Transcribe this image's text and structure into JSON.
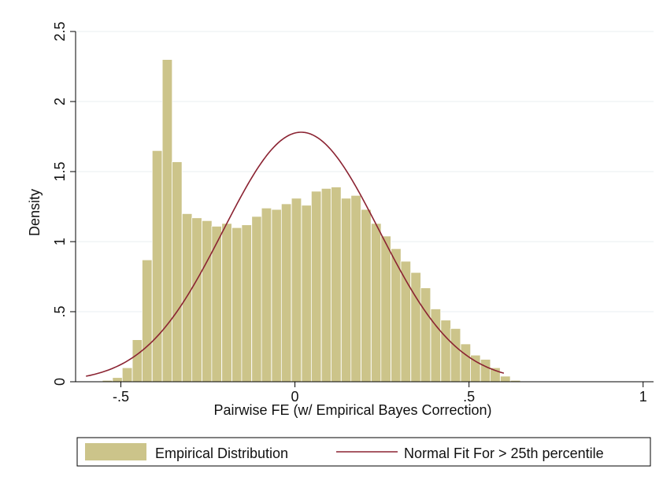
{
  "chart_data": {
    "type": "histogram",
    "xlabel": "Pairwise FE (w/ Empirical Bayes Correction)",
    "ylabel": "Density",
    "xlim": [
      -0.63,
      1.03
    ],
    "ylim": [
      0,
      2.5
    ],
    "grid": true,
    "legend_position": "bottom",
    "x_ticks": [
      {
        "value": -0.5,
        "label": "-.5"
      },
      {
        "value": 0,
        "label": "0"
      },
      {
        "value": 0.5,
        "label": ".5"
      },
      {
        "value": 1,
        "label": "1"
      }
    ],
    "y_ticks": [
      {
        "value": 0,
        "label": "0"
      },
      {
        "value": 0.5,
        "label": ".5"
      },
      {
        "value": 1,
        "label": "1"
      },
      {
        "value": 1.5,
        "label": "1.5"
      },
      {
        "value": 2,
        "label": "2"
      },
      {
        "value": 2.5,
        "label": "2.5"
      }
    ],
    "bin_width": 0.0286,
    "bin_starts": [
      -0.61,
      -0.581,
      -0.553,
      -0.524,
      -0.496,
      -0.467,
      -0.439,
      -0.41,
      -0.381,
      -0.353,
      -0.324,
      -0.296,
      -0.267,
      -0.239,
      -0.21,
      -0.181,
      -0.153,
      -0.124,
      -0.096,
      -0.067,
      -0.039,
      -0.01,
      0.019,
      0.047,
      0.076,
      0.104,
      0.133,
      0.161,
      0.19,
      0.219,
      0.247,
      0.276,
      0.304,
      0.333,
      0.361,
      0.39,
      0.419,
      0.447,
      0.476,
      0.504,
      0.533,
      0.561,
      0.59,
      0.619
    ],
    "series": [
      {
        "name": "Empirical Distribution",
        "type": "bar",
        "color": "#ccc48a",
        "edge_color": "#ffffff",
        "values": [
          0.005,
          0.005,
          0.01,
          0.03,
          0.1,
          0.3,
          0.87,
          1.65,
          2.3,
          1.57,
          1.2,
          1.17,
          1.15,
          1.11,
          1.13,
          1.1,
          1.12,
          1.18,
          1.24,
          1.23,
          1.27,
          1.31,
          1.26,
          1.36,
          1.38,
          1.39,
          1.31,
          1.33,
          1.23,
          1.13,
          1.04,
          0.95,
          0.86,
          0.78,
          0.67,
          0.52,
          0.44,
          0.38,
          0.27,
          0.19,
          0.16,
          0.1,
          0.04,
          0.01
        ]
      },
      {
        "name": "Normal Fit For > 25th percentile",
        "type": "line",
        "color": "#8b2332",
        "mean": 0.018,
        "sd": 0.224,
        "x_range": [
          -0.6,
          0.6
        ]
      }
    ]
  }
}
